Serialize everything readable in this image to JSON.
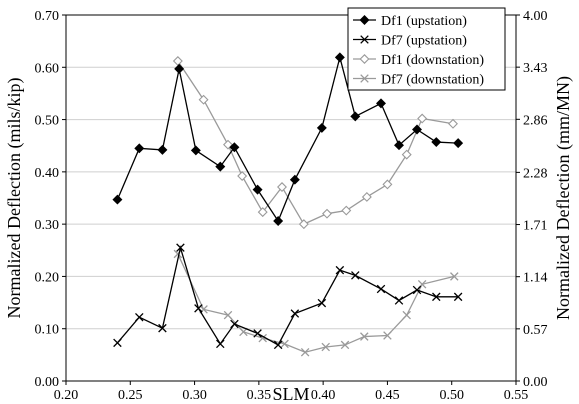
{
  "chart_data": {
    "type": "line",
    "xlabel": "SLM",
    "ylabel": "Normalized Deflection (mils/kip)",
    "y2label": "Normalized Deflection (mm/MN)",
    "xlim": [
      0.2,
      0.55
    ],
    "ylim": [
      0.0,
      0.7
    ],
    "y2lim": [
      0.0,
      4.0
    ],
    "xticks": [
      "0.20",
      "0.25",
      "0.30",
      "0.35",
      "0.40",
      "0.45",
      "0.50",
      "0.55"
    ],
    "yticks": [
      "0.00",
      "0.10",
      "0.20",
      "0.30",
      "0.40",
      "0.50",
      "0.60",
      "0.70"
    ],
    "y2ticks": [
      "0.00",
      "0.57",
      "1.14",
      "1.71",
      "2.28",
      "2.86",
      "3.43",
      "4.00"
    ],
    "grid": true,
    "legend_position": "top-right",
    "series": [
      {
        "name": "Df1 (upstation)",
        "color": "#000000",
        "marker": "diamond-filled",
        "x": [
          0.24,
          0.257,
          0.275,
          0.288,
          0.301,
          0.32,
          0.331,
          0.349,
          0.365,
          0.378,
          0.399,
          0.413,
          0.425,
          0.445,
          0.459,
          0.473,
          0.488,
          0.505
        ],
        "y": [
          0.347,
          0.445,
          0.442,
          0.597,
          0.441,
          0.41,
          0.447,
          0.366,
          0.306,
          0.385,
          0.484,
          0.619,
          0.506,
          0.531,
          0.451,
          0.481,
          0.457,
          0.455
        ]
      },
      {
        "name": "Df7 (upstation)",
        "color": "#000000",
        "marker": "x",
        "x": [
          0.24,
          0.257,
          0.275,
          0.289,
          0.303,
          0.32,
          0.331,
          0.349,
          0.365,
          0.378,
          0.399,
          0.413,
          0.425,
          0.445,
          0.459,
          0.473,
          0.488,
          0.505
        ],
        "y": [
          0.073,
          0.122,
          0.101,
          0.255,
          0.139,
          0.071,
          0.109,
          0.091,
          0.069,
          0.129,
          0.149,
          0.212,
          0.202,
          0.176,
          0.154,
          0.174,
          0.161,
          0.161
        ]
      },
      {
        "name": "Df1 (downstation)",
        "color": "#9a9a9a",
        "marker": "diamond-open",
        "x": [
          0.287,
          0.307,
          0.326,
          0.337,
          0.353,
          0.368,
          0.385,
          0.403,
          0.418,
          0.434,
          0.45,
          0.465,
          0.477,
          0.501
        ],
        "y": [
          0.612,
          0.538,
          0.452,
          0.392,
          0.323,
          0.371,
          0.3,
          0.32,
          0.326,
          0.352,
          0.376,
          0.433,
          0.502,
          0.492
        ]
      },
      {
        "name": "Df7 (downstation)",
        "color": "#9a9a9a",
        "marker": "x",
        "x": [
          0.287,
          0.307,
          0.326,
          0.338,
          0.353,
          0.37,
          0.386,
          0.402,
          0.417,
          0.432,
          0.45,
          0.465,
          0.477,
          0.502
        ],
        "y": [
          0.243,
          0.137,
          0.126,
          0.094,
          0.082,
          0.071,
          0.055,
          0.065,
          0.069,
          0.085,
          0.087,
          0.126,
          0.185,
          0.2
        ]
      }
    ]
  }
}
